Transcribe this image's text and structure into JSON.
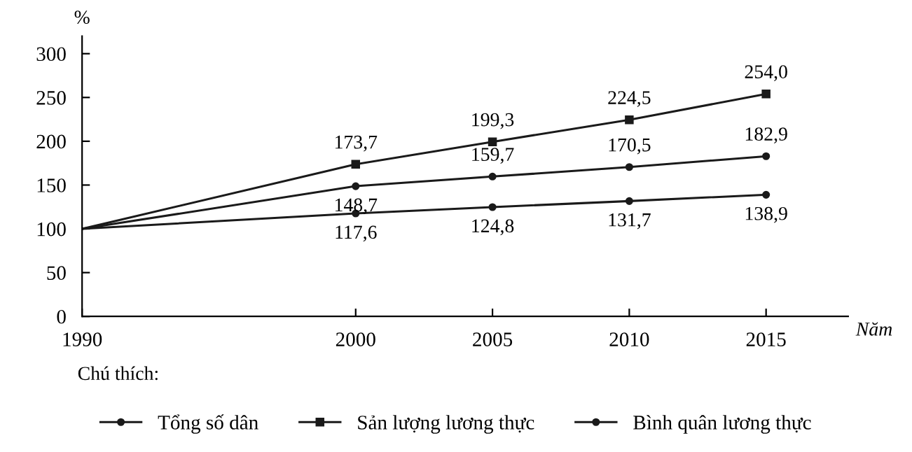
{
  "chart_data": {
    "type": "line",
    "ylabel": "%",
    "xlabel": "Năm",
    "legend_title": "Chú thích:",
    "x": [
      1990,
      2000,
      2005,
      2010,
      2015
    ],
    "xlim": [
      1990,
      2018
    ],
    "xticks": [
      1990,
      2000,
      2005,
      2010,
      2015
    ],
    "ylim": [
      0,
      320
    ],
    "yticks": [
      0,
      50,
      100,
      150,
      200,
      250,
      300
    ],
    "grid": false,
    "legend": "bottom",
    "series": [
      {
        "name": "Tổng số dân",
        "color": "#1a1a1a",
        "marker": "circle",
        "values": [
          100,
          117.6,
          124.8,
          131.7,
          138.9
        ],
        "value_labels": [
          null,
          "117,6",
          "124,8",
          "131,7",
          "138,9"
        ]
      },
      {
        "name": "Sản lượng lương thực",
        "color": "#1a1a1a",
        "marker": "square",
        "values": [
          100,
          173.7,
          199.3,
          224.5,
          254.0
        ],
        "value_labels": [
          null,
          "173,7",
          "199,3",
          "224,5",
          "254,0"
        ]
      },
      {
        "name": "Bình quân lương thực",
        "color": "#1a1a1a",
        "marker": "circle",
        "values": [
          100,
          148.7,
          159.7,
          170.5,
          182.9
        ],
        "value_labels": [
          null,
          "148,7",
          "159,7",
          "170,5",
          "182,9"
        ]
      }
    ]
  }
}
